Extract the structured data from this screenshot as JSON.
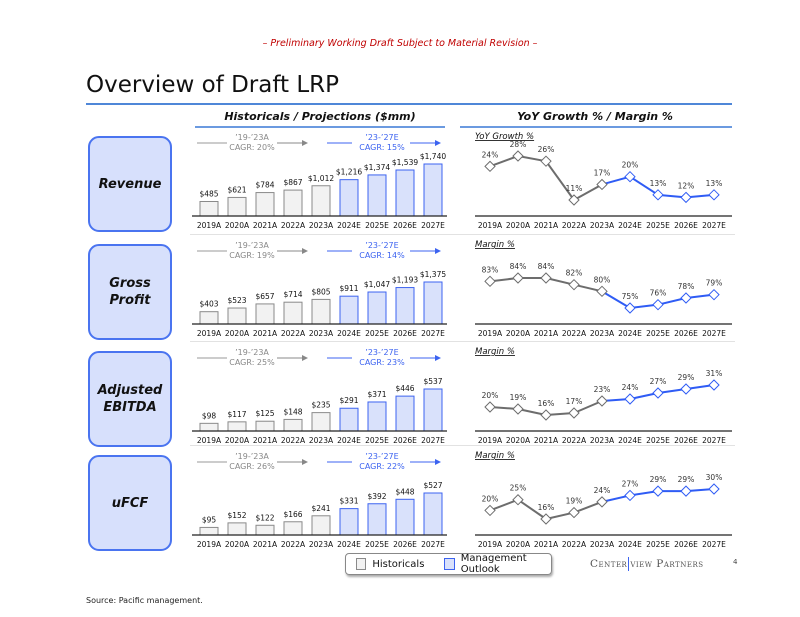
{
  "header": {
    "draft_notice": "– Preliminary Working Draft Subject to Material Revision –",
    "title": "Overview of Draft LRP"
  },
  "sections": {
    "left": "Historicals / Projections ($mm)",
    "right": "YoY Growth % / Margin %"
  },
  "rows": [
    {
      "metric": "Revenue"
    },
    {
      "metric": "Gross\nProfit"
    },
    {
      "metric": "Adjusted\nEBITDA"
    },
    {
      "metric": "uFCF"
    }
  ],
  "legend": {
    "historicals": "Historicals",
    "projections": "Management Outlook"
  },
  "footer": {
    "brand_left": "Center",
    "brand_right": "view Partners",
    "page_number": "4",
    "source": "Source: Pacific management."
  },
  "colors": {
    "hist_fill": "#f2f2f2",
    "hist_stroke": "#8a8a8a",
    "proj_fill": "#d9e1fb",
    "proj_stroke": "#3c63f0",
    "hist_line": "#6d6d6d",
    "proj_line": "#2f5cf5",
    "accent": "#4f87d8"
  },
  "chart_data": [
    {
      "type": "bar",
      "metric": "Revenue",
      "categories": [
        "2019A",
        "2020A",
        "2021A",
        "2022A",
        "2023A",
        "2024E",
        "2025E",
        "2026E",
        "2027E"
      ],
      "values": [
        485,
        621,
        784,
        867,
        1012,
        1216,
        1374,
        1539,
        1740
      ],
      "labels": [
        "$485",
        "$621",
        "$784",
        "$867",
        "$1,012",
        "$1,216",
        "$1,374",
        "$1,539",
        "$1,740"
      ],
      "hist_period": "’19-’23A",
      "hist_cagr": "CAGR: 20%",
      "proj_period": "’23-’27E",
      "proj_cagr": "CAGR: 15%"
    },
    {
      "type": "bar",
      "metric": "Gross Profit",
      "categories": [
        "2019A",
        "2020A",
        "2021A",
        "2022A",
        "2023A",
        "2024E",
        "2025E",
        "2026E",
        "2027E"
      ],
      "values": [
        403,
        523,
        657,
        714,
        805,
        911,
        1047,
        1193,
        1375
      ],
      "labels": [
        "$403",
        "$523",
        "$657",
        "$714",
        "$805",
        "$911",
        "$1,047",
        "$1,193",
        "$1,375"
      ],
      "hist_period": "’19-’23A",
      "hist_cagr": "CAGR: 19%",
      "proj_period": "’23-’27E",
      "proj_cagr": "CAGR: 14%"
    },
    {
      "type": "bar",
      "metric": "Adjusted EBITDA",
      "categories": [
        "2019A",
        "2020A",
        "2021A",
        "2022A",
        "2023A",
        "2024E",
        "2025E",
        "2026E",
        "2027E"
      ],
      "values": [
        98,
        117,
        125,
        148,
        235,
        291,
        371,
        446,
        537
      ],
      "labels": [
        "$98",
        "$117",
        "$125",
        "$148",
        "$235",
        "$291",
        "$371",
        "$446",
        "$537"
      ],
      "hist_period": "’19-’23A",
      "hist_cagr": "CAGR: 25%",
      "proj_period": "’23-’27E",
      "proj_cagr": "CAGR: 23%"
    },
    {
      "type": "bar",
      "metric": "uFCF",
      "categories": [
        "2019A",
        "2020A",
        "2021A",
        "2022A",
        "2023A",
        "2024E",
        "2025E",
        "2026E",
        "2027E"
      ],
      "values": [
        95,
        152,
        122,
        166,
        241,
        331,
        392,
        448,
        527
      ],
      "labels": [
        "$95",
        "$152",
        "$122",
        "$166",
        "$241",
        "$331",
        "$392",
        "$448",
        "$527"
      ],
      "hist_period": "’19-’23A",
      "hist_cagr": "CAGR: 26%",
      "proj_period": "’23-’27E",
      "proj_cagr": "CAGR: 22%"
    },
    {
      "type": "line",
      "title": "YoY Growth %",
      "categories": [
        "2019A",
        "2020A",
        "2021A",
        "2022A",
        "2023A",
        "2024E",
        "2025E",
        "2026E",
        "2027E"
      ],
      "values": [
        24,
        28,
        26,
        11,
        17,
        20,
        13,
        12,
        13
      ],
      "labels": [
        "24%",
        "28%",
        "26%",
        "11%",
        "17%",
        "20%",
        "13%",
        "12%",
        "13%"
      ]
    },
    {
      "type": "line",
      "title": "Margin %",
      "categories": [
        "2019A",
        "2020A",
        "2021A",
        "2022A",
        "2023A",
        "2024E",
        "2025E",
        "2026E",
        "2027E"
      ],
      "values": [
        83,
        84,
        84,
        82,
        80,
        75,
        76,
        78,
        79
      ],
      "labels": [
        "83%",
        "84%",
        "84%",
        "82%",
        "80%",
        "75%",
        "76%",
        "78%",
        "79%"
      ]
    },
    {
      "type": "line",
      "title": "Margin %",
      "categories": [
        "2019A",
        "2020A",
        "2021A",
        "2022A",
        "2023A",
        "2024E",
        "2025E",
        "2026E",
        "2027E"
      ],
      "values": [
        20,
        19,
        16,
        17,
        23,
        24,
        27,
        29,
        31
      ],
      "labels": [
        "20%",
        "19%",
        "16%",
        "17%",
        "23%",
        "24%",
        "27%",
        "29%",
        "31%"
      ]
    },
    {
      "type": "line",
      "title": "Margin %",
      "categories": [
        "2019A",
        "2020A",
        "2021A",
        "2022A",
        "2023A",
        "2024E",
        "2025E",
        "2026E",
        "2027E"
      ],
      "values": [
        20,
        25,
        16,
        19,
        24,
        27,
        29,
        29,
        30
      ],
      "labels": [
        "20%",
        "25%",
        "16%",
        "19%",
        "24%",
        "27%",
        "29%",
        "29%",
        "30%"
      ]
    }
  ]
}
